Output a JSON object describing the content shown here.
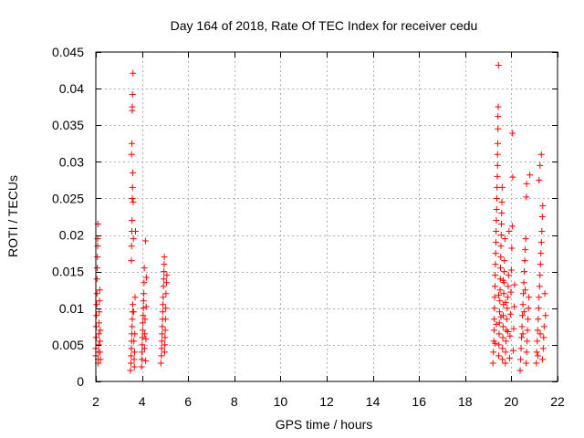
{
  "chart_data": {
    "type": "scatter",
    "title": "Day 164 of 2018, Rate Of TEC Index for receiver cedu",
    "xlabel": "GPS time / hours",
    "ylabel": "ROTI / TECUs",
    "xlim": [
      2,
      22
    ],
    "ylim": [
      0,
      0.045
    ],
    "xticks": [
      2,
      4,
      6,
      8,
      10,
      12,
      14,
      16,
      18,
      20,
      22
    ],
    "xtick_labels": [
      "2",
      "4",
      "6",
      "8",
      "10",
      "12",
      "14",
      "16",
      "18",
      "20",
      "22"
    ],
    "yticks": [
      0,
      0.005,
      0.01,
      0.015,
      0.02,
      0.025,
      0.03,
      0.035,
      0.04,
      0.045
    ],
    "ytick_labels": [
      "0",
      "0.005",
      "0.01",
      "0.015",
      "0.02",
      "0.025",
      "0.03",
      "0.035",
      "0.04",
      "0.045"
    ],
    "grid": true,
    "marker": "+",
    "marker_color": "#ff0000",
    "series": [
      {
        "name": "ROTI",
        "points": [
          [
            2.0,
            0.0035
          ],
          [
            2.0,
            0.0045
          ],
          [
            2.02,
            0.006
          ],
          [
            2.02,
            0.0075
          ],
          [
            2.03,
            0.009
          ],
          [
            2.04,
            0.0105
          ],
          [
            2.05,
            0.012
          ],
          [
            2.05,
            0.014
          ],
          [
            2.06,
            0.0155
          ],
          [
            2.07,
            0.017
          ],
          [
            2.08,
            0.0185
          ],
          [
            2.08,
            0.0195
          ],
          [
            2.09,
            0.0215
          ],
          [
            2.1,
            0.0025
          ],
          [
            2.1,
            0.003
          ],
          [
            2.11,
            0.004
          ],
          [
            2.12,
            0.005
          ],
          [
            2.13,
            0.0065
          ],
          [
            2.14,
            0.008
          ],
          [
            2.15,
            0.0095
          ],
          [
            2.16,
            0.011
          ],
          [
            2.17,
            0.0125
          ],
          [
            2.18,
            0.004
          ],
          [
            2.18,
            0.0055
          ],
          [
            2.19,
            0.007
          ],
          [
            2.2,
            0.003
          ],
          [
            3.5,
            0.0015
          ],
          [
            3.52,
            0.0025
          ],
          [
            3.53,
            0.0035
          ],
          [
            3.54,
            0.0045
          ],
          [
            3.55,
            0.0055
          ],
          [
            3.56,
            0.0065
          ],
          [
            3.57,
            0.0075
          ],
          [
            3.58,
            0.0085
          ],
          [
            3.59,
            0.0095
          ],
          [
            3.6,
            0.0105
          ],
          [
            3.54,
            0.0165
          ],
          [
            3.55,
            0.0185
          ],
          [
            3.56,
            0.0205
          ],
          [
            3.57,
            0.022
          ],
          [
            3.58,
            0.025
          ],
          [
            3.59,
            0.0265
          ],
          [
            3.6,
            0.0285
          ],
          [
            3.55,
            0.031
          ],
          [
            3.56,
            0.0325
          ],
          [
            3.58,
            0.037
          ],
          [
            3.58,
            0.0375
          ],
          [
            3.59,
            0.0392
          ],
          [
            3.61,
            0.0421
          ],
          [
            3.62,
            0.0245
          ],
          [
            3.63,
            0.0195
          ],
          [
            3.64,
            0.0095
          ],
          [
            3.65,
            0.0055
          ],
          [
            3.66,
            0.003
          ],
          [
            3.67,
            0.002
          ],
          [
            3.68,
            0.004
          ],
          [
            3.69,
            0.0065
          ],
          [
            3.7,
            0.0115
          ],
          [
            3.72,
            0.0205
          ],
          [
            3.98,
            0.002
          ],
          [
            3.99,
            0.003
          ],
          [
            4.0,
            0.004
          ],
          [
            4.01,
            0.005
          ],
          [
            4.02,
            0.006
          ],
          [
            4.03,
            0.007
          ],
          [
            4.04,
            0.008
          ],
          [
            4.05,
            0.009
          ],
          [
            4.06,
            0.01
          ],
          [
            4.07,
            0.011
          ],
          [
            4.08,
            0.012
          ],
          [
            4.09,
            0.0135
          ],
          [
            4.1,
            0.0155
          ],
          [
            4.11,
            0.0045
          ],
          [
            4.12,
            0.0065
          ],
          [
            4.13,
            0.0085
          ],
          [
            4.15,
            0.0192
          ],
          [
            4.16,
            0.0028
          ],
          [
            4.17,
            0.0058
          ],
          [
            4.18,
            0.0102
          ],
          [
            4.19,
            0.0142
          ],
          [
            4.82,
            0.0025
          ],
          [
            4.84,
            0.0035
          ],
          [
            4.85,
            0.0045
          ],
          [
            4.86,
            0.0055
          ],
          [
            4.87,
            0.0065
          ],
          [
            4.88,
            0.0075
          ],
          [
            4.89,
            0.0085
          ],
          [
            4.9,
            0.0095
          ],
          [
            4.91,
            0.0105
          ],
          [
            4.92,
            0.0115
          ],
          [
            4.93,
            0.013
          ],
          [
            4.94,
            0.014
          ],
          [
            4.95,
            0.015
          ],
          [
            4.96,
            0.016
          ],
          [
            4.97,
            0.017
          ],
          [
            4.98,
            0.004
          ],
          [
            4.99,
            0.005
          ],
          [
            5.0,
            0.006
          ],
          [
            5.01,
            0.007
          ],
          [
            5.02,
            0.0085
          ],
          [
            5.03,
            0.01
          ],
          [
            5.04,
            0.012
          ],
          [
            5.06,
            0.0135
          ],
          [
            5.08,
            0.0145
          ],
          [
            19.2,
            0.0025
          ],
          [
            19.22,
            0.004
          ],
          [
            19.24,
            0.0055
          ],
          [
            19.25,
            0.007
          ],
          [
            19.26,
            0.0085
          ],
          [
            19.27,
            0.01
          ],
          [
            19.28,
            0.0115
          ],
          [
            19.29,
            0.013
          ],
          [
            19.3,
            0.0145
          ],
          [
            19.31,
            0.016
          ],
          [
            19.32,
            0.0175
          ],
          [
            19.33,
            0.019
          ],
          [
            19.34,
            0.0205
          ],
          [
            19.35,
            0.022
          ],
          [
            19.36,
            0.0235
          ],
          [
            19.37,
            0.025
          ],
          [
            19.38,
            0.0265
          ],
          [
            19.39,
            0.028
          ],
          [
            19.4,
            0.0295
          ],
          [
            19.4,
            0.031
          ],
          [
            19.41,
            0.0325
          ],
          [
            19.42,
            0.0345
          ],
          [
            19.42,
            0.0362
          ],
          [
            19.43,
            0.0375
          ],
          [
            19.44,
            0.0432
          ],
          [
            19.45,
            0.0035
          ],
          [
            19.46,
            0.005
          ],
          [
            19.47,
            0.0065
          ],
          [
            19.48,
            0.008
          ],
          [
            19.49,
            0.0095
          ],
          [
            19.5,
            0.011
          ],
          [
            19.51,
            0.0125
          ],
          [
            19.52,
            0.014
          ],
          [
            19.53,
            0.0155
          ],
          [
            19.54,
            0.017
          ],
          [
            19.55,
            0.0185
          ],
          [
            19.56,
            0.02
          ],
          [
            19.57,
            0.0215
          ],
          [
            19.58,
            0.023
          ],
          [
            19.59,
            0.0245
          ],
          [
            19.6,
            0.0265
          ],
          [
            19.61,
            0.003
          ],
          [
            19.62,
            0.0045
          ],
          [
            19.63,
            0.006
          ],
          [
            19.64,
            0.0075
          ],
          [
            19.65,
            0.009
          ],
          [
            19.66,
            0.0105
          ],
          [
            19.67,
            0.012
          ],
          [
            19.68,
            0.0135
          ],
          [
            19.69,
            0.015
          ],
          [
            19.7,
            0.0165
          ],
          [
            19.72,
            0.0195
          ],
          [
            19.74,
            0.0025
          ],
          [
            19.75,
            0.004
          ],
          [
            19.76,
            0.0055
          ],
          [
            19.78,
            0.007
          ],
          [
            19.8,
            0.0085
          ],
          [
            19.82,
            0.01
          ],
          [
            19.84,
            0.0115
          ],
          [
            19.86,
            0.013
          ],
          [
            19.88,
            0.0145
          ],
          [
            19.9,
            0.0205
          ],
          [
            19.92,
            0.0032
          ],
          [
            19.94,
            0.0062
          ],
          [
            19.96,
            0.0092
          ],
          [
            19.98,
            0.0122
          ],
          [
            20.0,
            0.0152
          ],
          [
            20.02,
            0.0182
          ],
          [
            20.04,
            0.0212
          ],
          [
            20.05,
            0.0339
          ],
          [
            20.06,
            0.0279
          ],
          [
            20.08,
            0.0042
          ],
          [
            20.1,
            0.0072
          ],
          [
            20.12,
            0.0102
          ],
          [
            20.14,
            0.0132
          ],
          [
            19.3,
            0.0052
          ],
          [
            19.35,
            0.0078
          ],
          [
            19.45,
            0.0118
          ],
          [
            19.55,
            0.0088
          ],
          [
            19.65,
            0.0138
          ],
          [
            19.75,
            0.0108
          ],
          [
            19.85,
            0.0068
          ],
          [
            20.38,
            0.0015
          ],
          [
            20.4,
            0.003
          ],
          [
            20.42,
            0.0045
          ],
          [
            20.44,
            0.006
          ],
          [
            20.46,
            0.0075
          ],
          [
            20.48,
            0.009
          ],
          [
            20.5,
            0.0105
          ],
          [
            20.52,
            0.012
          ],
          [
            20.54,
            0.0135
          ],
          [
            20.56,
            0.015
          ],
          [
            20.58,
            0.0165
          ],
          [
            20.6,
            0.018
          ],
          [
            20.62,
            0.0195
          ],
          [
            20.64,
            0.0025
          ],
          [
            20.66,
            0.004
          ],
          [
            20.68,
            0.0055
          ],
          [
            20.7,
            0.007
          ],
          [
            20.72,
            0.0085
          ],
          [
            20.74,
            0.01
          ],
          [
            20.76,
            0.0115
          ],
          [
            20.65,
            0.0252
          ],
          [
            20.66,
            0.027
          ],
          [
            20.8,
            0.0282
          ],
          [
            20.5,
            0.0065
          ],
          [
            20.55,
            0.0095
          ],
          [
            20.6,
            0.0125
          ],
          [
            21.08,
            0.0025
          ],
          [
            21.1,
            0.004
          ],
          [
            21.12,
            0.0055
          ],
          [
            21.14,
            0.007
          ],
          [
            21.16,
            0.0085
          ],
          [
            21.18,
            0.01
          ],
          [
            21.2,
            0.0115
          ],
          [
            21.22,
            0.013
          ],
          [
            21.24,
            0.0145
          ],
          [
            21.26,
            0.016
          ],
          [
            21.28,
            0.0175
          ],
          [
            21.3,
            0.019
          ],
          [
            21.32,
            0.0205
          ],
          [
            21.34,
            0.0225
          ],
          [
            21.36,
            0.024
          ],
          [
            21.2,
            0.0275
          ],
          [
            21.24,
            0.0295
          ],
          [
            21.3,
            0.031
          ],
          [
            21.35,
            0.003
          ],
          [
            21.38,
            0.0045
          ],
          [
            21.4,
            0.006
          ],
          [
            21.42,
            0.0075
          ],
          [
            21.45,
            0.012
          ],
          [
            21.48,
            0.009
          ],
          [
            21.15,
            0.0035
          ],
          [
            21.25,
            0.0065
          ]
        ]
      }
    ]
  }
}
